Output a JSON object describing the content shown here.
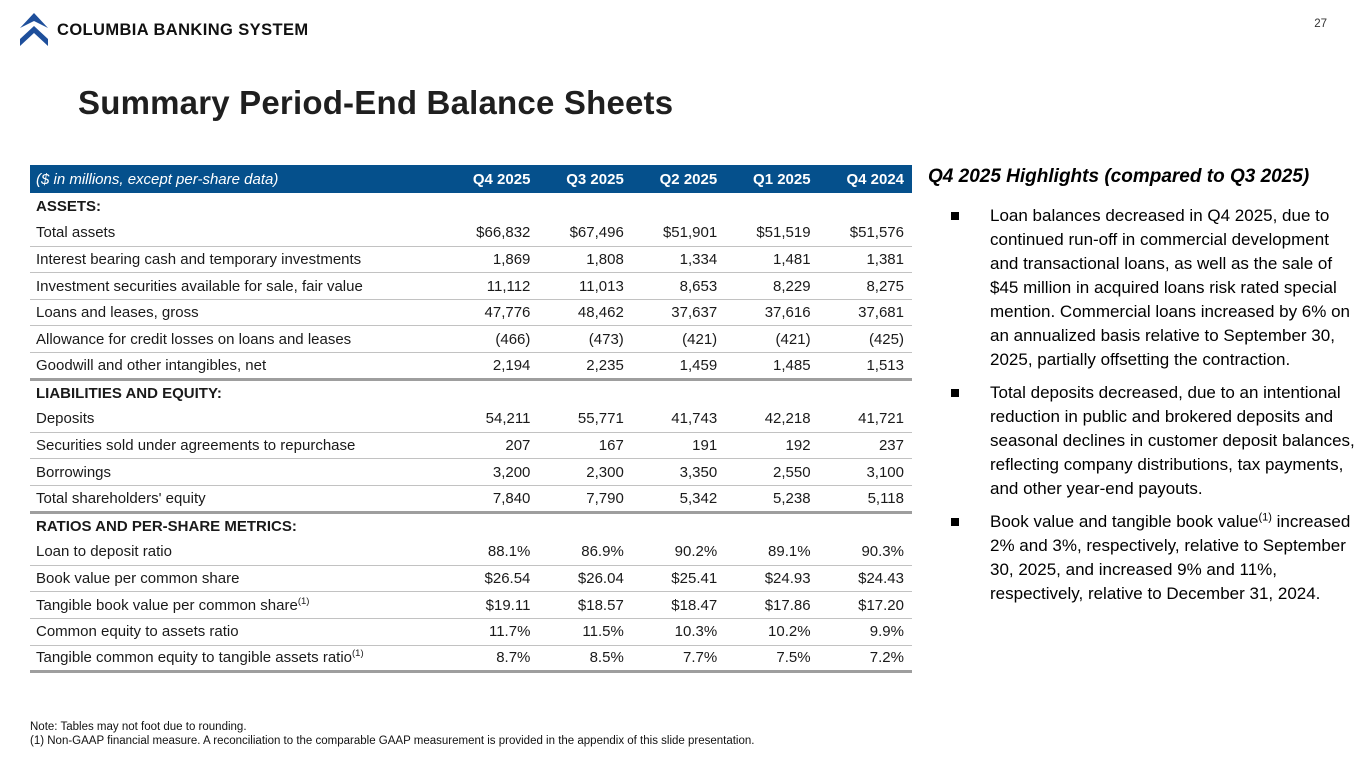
{
  "page": {
    "number": "27"
  },
  "brand": {
    "name": "COLUMBIA BANKING SYSTEM",
    "logo_color": "#1E4F9B"
  },
  "title": "Summary Period-End Balance Sheets",
  "colors": {
    "header_bar": "#05508C",
    "thin_border": "#C2C2C2",
    "thick_border": "#9E9E9E"
  },
  "table": {
    "caption": "($ in millions, except per-share data)",
    "columns": [
      "Q4 2025",
      "Q3 2025",
      "Q2 2025",
      "Q1 2025",
      "Q4 2024"
    ],
    "rows": [
      {
        "type": "section",
        "label": "ASSETS:"
      },
      {
        "type": "data",
        "label": "Total assets",
        "values": [
          "$66,832",
          "$67,496",
          "$51,901",
          "$51,519",
          "$51,576"
        ],
        "border": "thin"
      },
      {
        "type": "data",
        "label": "Interest bearing cash and temporary investments",
        "values": [
          "1,869",
          "1,808",
          "1,334",
          "1,481",
          "1,381"
        ],
        "border": "thin"
      },
      {
        "type": "data",
        "label": "Investment securities available for sale, fair value",
        "values": [
          "11,112",
          "11,013",
          "8,653",
          "8,229",
          "8,275"
        ],
        "border": "thin"
      },
      {
        "type": "data",
        "label": "Loans and leases, gross",
        "values": [
          "47,776",
          "48,462",
          "37,637",
          "37,616",
          "37,681"
        ],
        "border": "thin"
      },
      {
        "type": "data",
        "label": "Allowance for credit losses on loans and leases",
        "values": [
          "(466)",
          "(473)",
          "(421)",
          "(421)",
          "(425)"
        ],
        "border": "thin"
      },
      {
        "type": "data",
        "label": "Goodwill and other intangibles, net",
        "values": [
          "2,194",
          "2,235",
          "1,459",
          "1,485",
          "1,513"
        ],
        "border": "thick"
      },
      {
        "type": "section",
        "label": "LIABILITIES AND EQUITY:"
      },
      {
        "type": "data",
        "label": "Deposits",
        "values": [
          "54,211",
          "55,771",
          "41,743",
          "42,218",
          "41,721"
        ],
        "border": "thin"
      },
      {
        "type": "data",
        "label": "Securities sold under agreements to repurchase",
        "values": [
          "207",
          "167",
          "191",
          "192",
          "237"
        ],
        "border": "thin"
      },
      {
        "type": "data",
        "label": "Borrowings",
        "values": [
          "3,200",
          "2,300",
          "3,350",
          "2,550",
          "3,100"
        ],
        "border": "thin"
      },
      {
        "type": "data",
        "label": "Total shareholders' equity",
        "values": [
          "7,840",
          "7,790",
          "5,342",
          "5,238",
          "5,118"
        ],
        "border": "thick"
      },
      {
        "type": "section",
        "label": "RATIOS AND PER-SHARE METRICS:"
      },
      {
        "type": "data",
        "label": "Loan to deposit ratio",
        "values": [
          "88.1%",
          "86.9%",
          "90.2%",
          "89.1%",
          "90.3%"
        ],
        "border": "thin"
      },
      {
        "type": "data",
        "label": "Book value per common share",
        "values": [
          "$26.54",
          "$26.04",
          "$25.41",
          "$24.93",
          "$24.43"
        ],
        "border": "thin"
      },
      {
        "type": "data",
        "label": "Tangible book value per common share",
        "sup": "(1)",
        "values": [
          "$19.11",
          "$18.57",
          "$18.47",
          "$17.86",
          "$17.20"
        ],
        "border": "thin"
      },
      {
        "type": "data",
        "label": "Common equity to assets ratio",
        "values": [
          "11.7%",
          "11.5%",
          "10.3%",
          "10.2%",
          "9.9%"
        ],
        "border": "thin"
      },
      {
        "type": "data",
        "label": "Tangible common equity to tangible assets ratio",
        "sup": "(1)",
        "values": [
          "8.7%",
          "8.5%",
          "7.7%",
          "7.5%",
          "7.2%"
        ],
        "border": "thick"
      }
    ]
  },
  "highlights": {
    "heading": "Q4 2025 Highlights (compared to Q3 2025)",
    "bullets": [
      {
        "segments": [
          {
            "text": "Loan balances decreased in Q4 2025, due to continued run-off in commercial development and transactional loans, as well as the sale of $45 million in acquired loans risk rated special mention. Commercial loans increased by 6% on an annualized basis relative to September 30, 2025, partially offsetting the contraction."
          }
        ]
      },
      {
        "segments": [
          {
            "text": "Total deposits decreased, due to an intentional reduction in public and brokered deposits and seasonal declines in customer deposit balances, reflecting company distributions, tax payments, and other year-end payouts."
          }
        ]
      },
      {
        "segments": [
          {
            "text": "Book value and tangible book value"
          },
          {
            "sup": "(1)"
          },
          {
            "text": " increased 2% and 3%, respectively, relative to September 30, 2025, and increased 9% and 11%, respectively, relative to December 31, 2024."
          }
        ]
      }
    ]
  },
  "footnotes": {
    "note": "Note: Tables may not foot due to rounding.",
    "f1": "(1)  Non-GAAP financial measure.  A reconciliation to the comparable GAAP measurement is provided in the appendix of this slide presentation."
  }
}
